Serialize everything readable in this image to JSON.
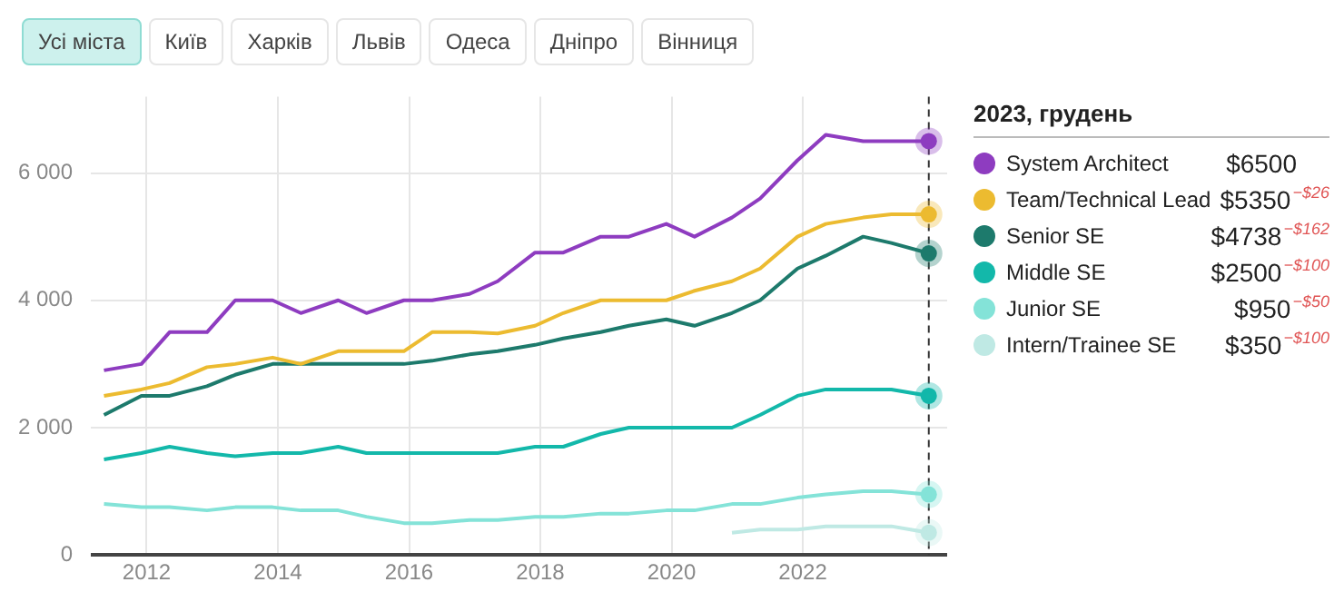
{
  "chart_data": {
    "type": "line",
    "x": [
      2011.35,
      2011.92,
      2012.35,
      2012.92,
      2013.35,
      2013.92,
      2014.35,
      2014.92,
      2015.35,
      2015.92,
      2016.35,
      2016.92,
      2017.35,
      2017.92,
      2018.35,
      2018.92,
      2019.35,
      2019.92,
      2020.35,
      2020.92,
      2021.35,
      2021.92,
      2022.35,
      2022.92,
      2023.35,
      2023.92
    ],
    "series": [
      {
        "name": "System Architect",
        "color": "#8e3cc0",
        "values": [
          2900,
          3000,
          3500,
          3500,
          4000,
          4000,
          3800,
          4000,
          3800,
          4000,
          4000,
          4100,
          4300,
          4750,
          4750,
          5000,
          5000,
          5200,
          5000,
          5300,
          5600,
          6200,
          6600,
          6500,
          6500,
          6500
        ]
      },
      {
        "name": "Team/Technical Lead",
        "color": "#ecbb30",
        "values": [
          2500,
          2600,
          2700,
          2950,
          3000,
          3100,
          3000,
          3200,
          3200,
          3200,
          3500,
          3500,
          3480,
          3600,
          3800,
          4000,
          4000,
          4000,
          4150,
          4300,
          4500,
          5000,
          5200,
          5300,
          5350,
          5350
        ]
      },
      {
        "name": "Senior SE",
        "color": "#1d7a6c",
        "values": [
          2200,
          2500,
          2500,
          2650,
          2830,
          3000,
          3000,
          3000,
          3000,
          3000,
          3050,
          3150,
          3200,
          3300,
          3400,
          3500,
          3600,
          3700,
          3600,
          3800,
          4000,
          4500,
          4700,
          5000,
          4900,
          4738
        ]
      },
      {
        "name": "Middle SE",
        "color": "#13b8aa",
        "values": [
          1500,
          1600,
          1700,
          1600,
          1550,
          1600,
          1600,
          1700,
          1600,
          1600,
          1600,
          1600,
          1600,
          1700,
          1700,
          1900,
          2000,
          2000,
          2000,
          2000,
          2200,
          2500,
          2600,
          2600,
          2600,
          2500
        ]
      },
      {
        "name": "Junior SE",
        "color": "#84e3d8",
        "values": [
          800,
          750,
          750,
          700,
          750,
          750,
          700,
          700,
          600,
          500,
          500,
          550,
          550,
          600,
          600,
          650,
          650,
          700,
          700,
          800,
          800,
          900,
          950,
          1000,
          1000,
          950
        ]
      },
      {
        "name": "Intern/Trainee SE",
        "color": "#bfe9e4",
        "values": [
          null,
          null,
          null,
          null,
          null,
          null,
          null,
          null,
          null,
          null,
          null,
          null,
          null,
          null,
          null,
          null,
          null,
          null,
          null,
          350,
          400,
          400,
          450,
          450,
          450,
          350
        ]
      }
    ],
    "xlim": [
      2011.15,
      2024.2
    ],
    "xticks": [
      2012,
      2014,
      2016,
      2018,
      2020,
      2022
    ],
    "ylim": [
      0,
      7200
    ],
    "yticks": [
      {
        "value": 0,
        "label": "0"
      },
      {
        "value": 2000,
        "label": "2 000"
      },
      {
        "value": 4000,
        "label": "4 000"
      },
      {
        "value": 6000,
        "label": "6 000"
      }
    ],
    "grid": true,
    "legend": "right",
    "legend_title": "2023, грудень",
    "marker": "none",
    "line_style": "solid",
    "ref_lines": [
      {
        "axis": "x",
        "value": 2023.92,
        "line_style": "dashed",
        "color": "#333333"
      }
    ],
    "annotations": [
      "Усі міста",
      "Київ",
      "Харків",
      "Львів",
      "Одеса",
      "Дніпро",
      "Вінниця",
      "$6500",
      "$5350",
      "$4738",
      "$2500",
      "$950",
      "$350",
      "−$26",
      "−$162",
      "−$100",
      "−$50",
      "−$100"
    ]
  }
}
